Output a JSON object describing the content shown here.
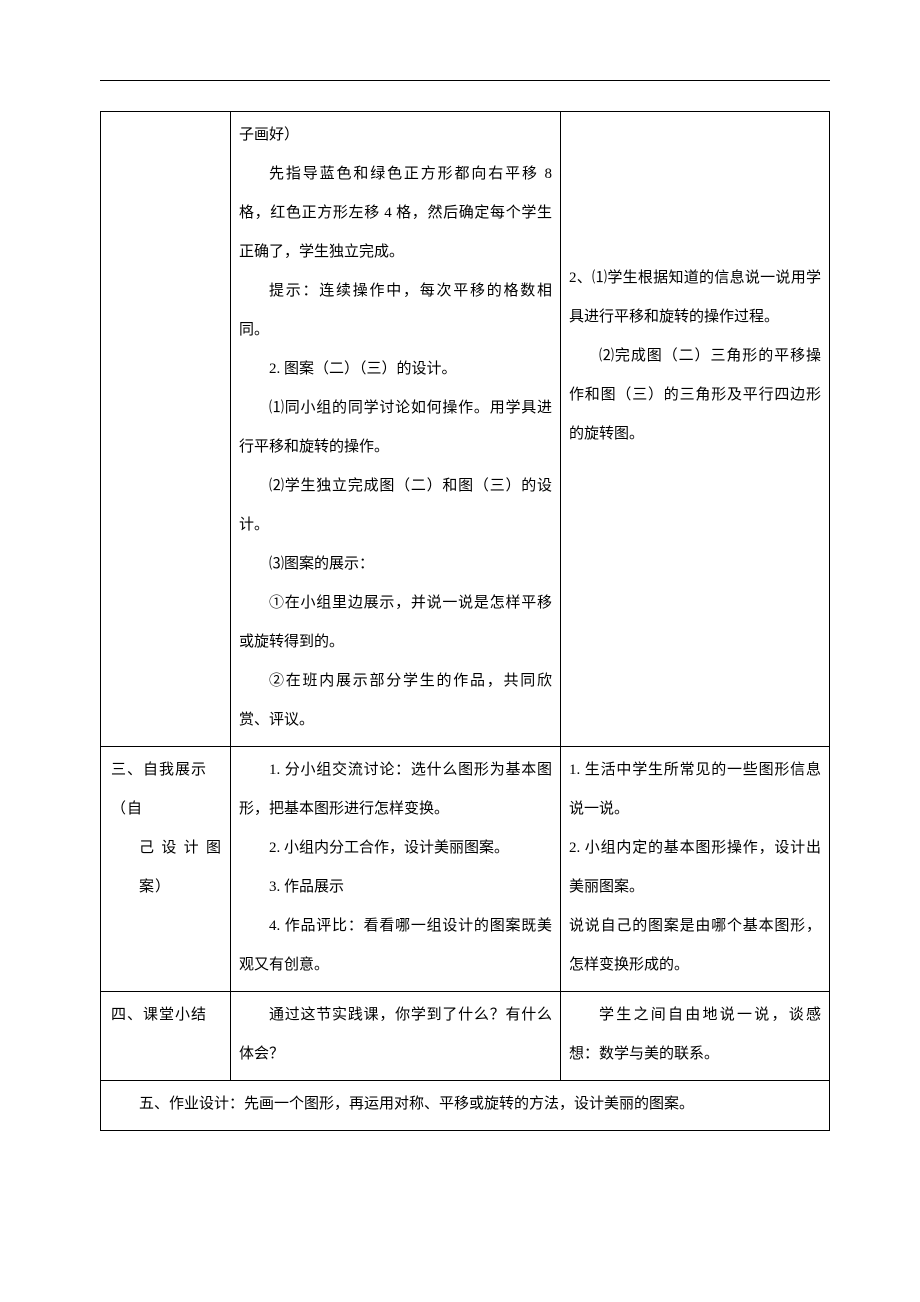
{
  "row1": {
    "col2": {
      "p1": "子画好）",
      "p2": "先指导蓝色和绿色正方形都向右平移 8 格，红色正方形左移 4 格，然后确定每个学生正确了，学生独立完成。",
      "p3": "提示：连续操作中，每次平移的格数相同。",
      "p4": "2. 图案（二）（三）的设计。",
      "p5": "⑴同小组的同学讨论如何操作。用学具进行平移和旋转的操作。",
      "p6": "⑵学生独立完成图（二）和图（三）的设计。",
      "p7": "⑶图案的展示：",
      "p8": "①在小组里边展示，并说一说是怎样平移或旋转得到的。",
      "p9": "②在班内展示部分学生的作品，共同欣赏、评议。"
    },
    "col3": {
      "p1": "2、⑴学生根据知道的信息说一说用学具进行平移和旋转的操作过程。",
      "p2": "⑵完成图（二）三角形的平移操作和图（三）的三角形及平行四边形的旋转图。"
    }
  },
  "row2": {
    "col1a": "三、自我展示（自",
    "col1b": "己设计图案）",
    "col2": {
      "p1": "1. 分小组交流讨论：选什么图形为基本图形，把基本图形进行怎样变换。",
      "p2": "2. 小组内分工合作，设计美丽图案。",
      "p3": "3. 作品展示",
      "p4": "4. 作品评比：看看哪一组设计的图案既美观又有创意。"
    },
    "col3": {
      "p1": "1. 生活中学生所常见的一些图形信息说一说。",
      "p2": "2. 小组内定的基本图形操作，设计出美丽图案。",
      "p3": "说说自己的图案是由哪个基本图形，怎样变换形成的。"
    }
  },
  "row3": {
    "col1": "四、课堂小结",
    "col2": "通过这节实践课，你学到了什么？有什么体会？",
    "col3": "学生之间自由地说一说，谈感想：数学与美的联系。"
  },
  "row4": {
    "text": "五、作业设计：先画一个图形，再运用对称、平移或旋转的方法，设计美丽的图案。"
  }
}
